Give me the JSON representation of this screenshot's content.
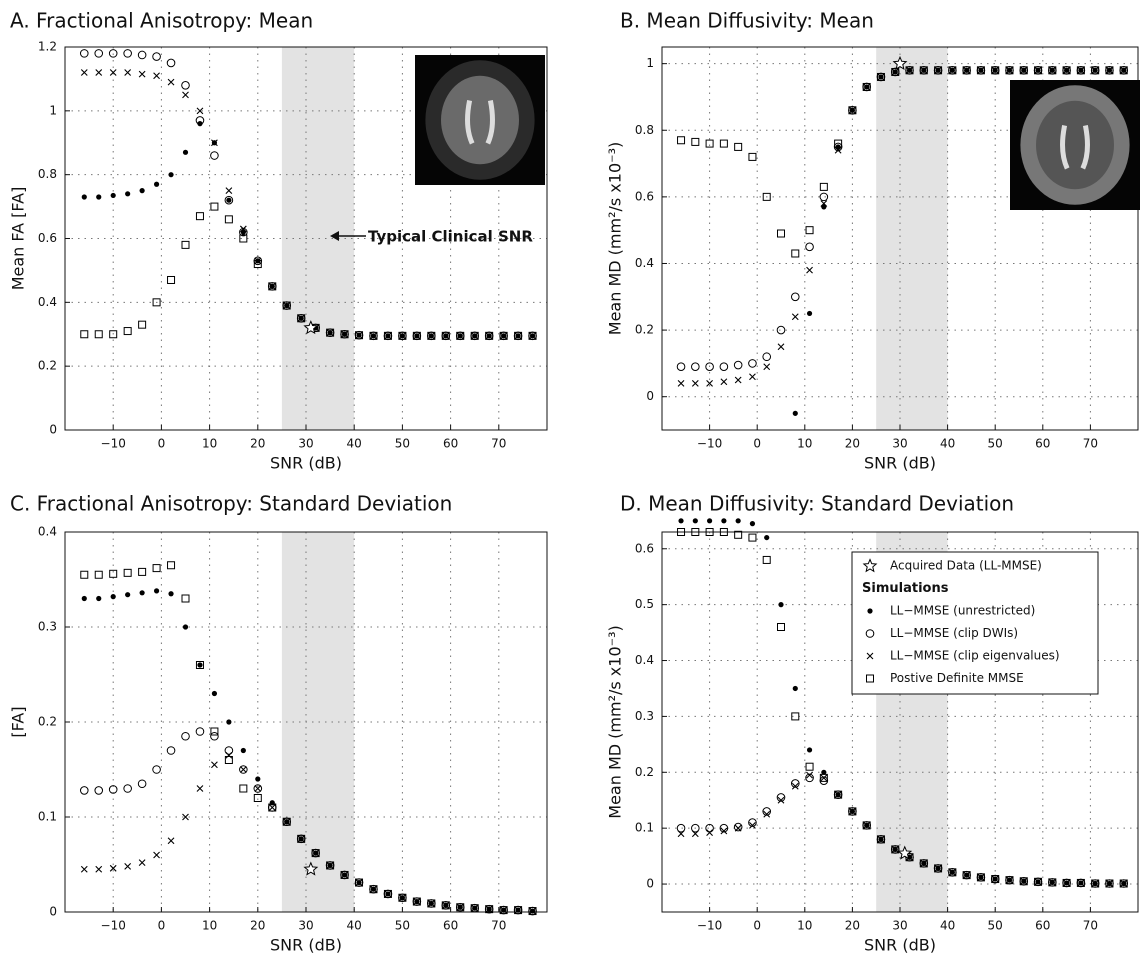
{
  "chart_data": [
    {
      "type": "scatter",
      "title": "A. Fractional Anisotropy: Mean",
      "xlabel": "SNR (dB)",
      "ylabel": "Mean FA [FA]",
      "xlim": [
        -20,
        80
      ],
      "ylim": [
        0,
        1.2
      ],
      "xticks": [
        {
          "value": -10,
          "label": "−10"
        },
        0,
        10,
        20,
        30,
        40,
        50,
        60,
        70
      ],
      "yticks": [
        0,
        0.2,
        0.4,
        0.6,
        0.8,
        1,
        1.2
      ],
      "grid": true,
      "shade": [
        25,
        40
      ],
      "annotation": "Typical Clinical SNR",
      "x": [
        -16,
        -13,
        -10,
        -7,
        -4,
        -1,
        2,
        5,
        8,
        11,
        14,
        17,
        20,
        23,
        26,
        29,
        32,
        35,
        38,
        41,
        44,
        47,
        50,
        53,
        56,
        59,
        62,
        65,
        68,
        71,
        74,
        77
      ],
      "series": [
        {
          "marker": "dot",
          "color": "#000",
          "values": [
            0.73,
            0.73,
            0.735,
            0.74,
            0.75,
            0.77,
            0.8,
            0.87,
            0.96,
            0.9,
            0.72,
            0.62,
            0.53,
            0.45,
            0.39,
            0.35,
            0.32,
            0.305,
            0.3,
            0.297,
            0.295,
            0.295,
            0.295,
            0.295,
            0.295,
            0.295,
            0.295,
            0.295,
            0.295,
            0.295,
            0.295,
            0.295
          ]
        },
        {
          "marker": "circle",
          "color": "#000",
          "values": [
            1.18,
            1.18,
            1.18,
            1.18,
            1.175,
            1.17,
            1.15,
            1.08,
            0.97,
            0.86,
            0.72,
            0.62,
            0.53,
            0.45,
            0.39,
            0.35,
            0.32,
            0.305,
            0.3,
            0.297,
            0.295,
            0.295,
            0.295,
            0.295,
            0.295,
            0.295,
            0.295,
            0.295,
            0.295,
            0.295,
            0.295,
            0.295
          ]
        },
        {
          "marker": "x",
          "color": "#000",
          "values": [
            1.12,
            1.12,
            1.12,
            1.12,
            1.115,
            1.11,
            1.09,
            1.05,
            1.0,
            0.9,
            0.75,
            0.63,
            0.53,
            0.45,
            0.39,
            0.35,
            0.32,
            0.305,
            0.3,
            0.297,
            0.295,
            0.295,
            0.295,
            0.295,
            0.295,
            0.295,
            0.295,
            0.295,
            0.295,
            0.295,
            0.295,
            0.295
          ]
        },
        {
          "marker": "square",
          "color": "#000",
          "values": [
            0.3,
            0.3,
            0.3,
            0.31,
            0.33,
            0.4,
            0.47,
            0.58,
            0.67,
            0.7,
            0.66,
            0.6,
            0.52,
            0.45,
            0.39,
            0.35,
            0.32,
            0.305,
            0.3,
            0.297,
            0.295,
            0.295,
            0.295,
            0.295,
            0.295,
            0.295,
            0.295,
            0.295,
            0.295,
            0.295,
            0.295,
            0.295
          ]
        }
      ],
      "acquired": {
        "marker": "star",
        "color": "#000",
        "x": 31,
        "y": 0.32
      }
    },
    {
      "type": "scatter",
      "title": "B. Mean Diffusivity: Mean",
      "xlabel": "SNR (dB)",
      "ylabel": "Mean MD (mm²/s x10⁻³)",
      "xlim": [
        -20,
        80
      ],
      "ylim": [
        -0.1,
        1.05
      ],
      "xticks": [
        {
          "value": -10,
          "label": "−10"
        },
        0,
        10,
        20,
        30,
        40,
        50,
        60,
        70
      ],
      "yticks": [
        0,
        0.2,
        0.4,
        0.6,
        0.8,
        1
      ],
      "grid": true,
      "shade": [
        25,
        40
      ],
      "x": [
        -16,
        -13,
        -10,
        -7,
        -4,
        -1,
        2,
        5,
        8,
        11,
        14,
        17,
        20,
        23,
        26,
        29,
        32,
        35,
        38,
        41,
        44,
        47,
        50,
        53,
        56,
        59,
        62,
        65,
        68,
        71,
        74,
        77
      ],
      "series": [
        {
          "marker": "dot",
          "color": "#000",
          "values": [
            null,
            null,
            null,
            null,
            null,
            null,
            null,
            null,
            -0.05,
            0.25,
            0.57,
            0.75,
            0.86,
            0.93,
            0.96,
            0.975,
            0.98,
            0.98,
            0.98,
            0.98,
            0.98,
            0.98,
            0.98,
            0.98,
            0.98,
            0.98,
            0.98,
            0.98,
            0.98,
            0.98,
            0.98,
            0.98
          ]
        },
        {
          "marker": "circle",
          "color": "#000",
          "values": [
            0.09,
            0.09,
            0.09,
            0.09,
            0.095,
            0.1,
            0.12,
            0.2,
            0.3,
            0.45,
            0.6,
            0.75,
            0.86,
            0.93,
            0.96,
            0.975,
            0.98,
            0.98,
            0.98,
            0.98,
            0.98,
            0.98,
            0.98,
            0.98,
            0.98,
            0.98,
            0.98,
            0.98,
            0.98,
            0.98,
            0.98,
            0.98
          ]
        },
        {
          "marker": "x",
          "color": "#000",
          "values": [
            0.04,
            0.04,
            0.04,
            0.045,
            0.05,
            0.06,
            0.09,
            0.15,
            0.24,
            0.38,
            0.58,
            0.74,
            0.86,
            0.93,
            0.96,
            0.975,
            0.98,
            0.98,
            0.98,
            0.98,
            0.98,
            0.98,
            0.98,
            0.98,
            0.98,
            0.98,
            0.98,
            0.98,
            0.98,
            0.98,
            0.98,
            0.98
          ]
        },
        {
          "marker": "square",
          "color": "#000",
          "values": [
            0.77,
            0.765,
            0.76,
            0.76,
            0.75,
            0.72,
            0.6,
            0.49,
            0.43,
            0.5,
            0.63,
            0.76,
            0.86,
            0.93,
            0.96,
            0.975,
            0.98,
            0.98,
            0.98,
            0.98,
            0.98,
            0.98,
            0.98,
            0.98,
            0.98,
            0.98,
            0.98,
            0.98,
            0.98,
            0.98,
            0.98,
            0.98
          ]
        }
      ],
      "acquired": {
        "marker": "star",
        "color": "#000",
        "x": 30,
        "y": 1.0
      }
    },
    {
      "type": "scatter",
      "title": "C. Fractional Anisotropy: Standard Deviation",
      "xlabel": "SNR (dB)",
      "ylabel": "[FA]",
      "xlim": [
        -20,
        80
      ],
      "ylim": [
        0,
        0.4
      ],
      "xticks": [
        {
          "value": -10,
          "label": "−10"
        },
        0,
        10,
        20,
        30,
        40,
        50,
        60,
        70
      ],
      "yticks": [
        0,
        0.1,
        0.2,
        0.3,
        0.4
      ],
      "grid": true,
      "shade": [
        25,
        40
      ],
      "x": [
        -16,
        -13,
        -10,
        -7,
        -4,
        -1,
        2,
        5,
        8,
        11,
        14,
        17,
        20,
        23,
        26,
        29,
        32,
        35,
        38,
        41,
        44,
        47,
        50,
        53,
        56,
        59,
        62,
        65,
        68,
        71,
        74,
        77
      ],
      "series": [
        {
          "marker": "dot",
          "color": "#000",
          "values": [
            0.33,
            0.33,
            0.332,
            0.334,
            0.336,
            0.338,
            0.335,
            0.3,
            0.26,
            0.23,
            0.2,
            0.17,
            0.14,
            0.115,
            0.095,
            0.077,
            0.062,
            0.049,
            0.039,
            0.031,
            0.024,
            0.019,
            0.015,
            0.011,
            0.009,
            0.007,
            0.005,
            0.004,
            0.003,
            0.002,
            0.002,
            0.001
          ]
        },
        {
          "marker": "circle",
          "color": "#000",
          "values": [
            0.128,
            0.128,
            0.129,
            0.13,
            0.135,
            0.15,
            0.17,
            0.185,
            0.19,
            0.185,
            0.17,
            0.15,
            0.13,
            0.11,
            0.095,
            0.077,
            0.062,
            0.049,
            0.039,
            0.031,
            0.024,
            0.019,
            0.015,
            0.011,
            0.009,
            0.007,
            0.005,
            0.004,
            0.003,
            0.002,
            0.002,
            0.001
          ]
        },
        {
          "marker": "x",
          "color": "#000",
          "values": [
            0.045,
            0.045,
            0.046,
            0.048,
            0.052,
            0.06,
            0.075,
            0.1,
            0.13,
            0.155,
            0.165,
            0.15,
            0.13,
            0.11,
            0.095,
            0.077,
            0.062,
            0.049,
            0.039,
            0.031,
            0.024,
            0.019,
            0.015,
            0.011,
            0.009,
            0.007,
            0.005,
            0.004,
            0.003,
            0.002,
            0.002,
            0.001
          ]
        },
        {
          "marker": "square",
          "color": "#000",
          "values": [
            0.355,
            0.355,
            0.356,
            0.357,
            0.358,
            0.362,
            0.365,
            0.33,
            0.26,
            0.19,
            0.16,
            0.13,
            0.12,
            0.11,
            0.095,
            0.077,
            0.062,
            0.049,
            0.039,
            0.031,
            0.024,
            0.019,
            0.015,
            0.011,
            0.009,
            0.007,
            0.005,
            0.004,
            0.003,
            0.002,
            0.002,
            0.001
          ]
        }
      ],
      "acquired": {
        "marker": "star",
        "color": "#000",
        "x": 31,
        "y": 0.045
      }
    },
    {
      "type": "scatter",
      "title": "D. Mean Diffusivity: Standard Deviation",
      "xlabel": "SNR (dB)",
      "ylabel": "Mean MD (mm²/s x10⁻³)",
      "xlim": [
        -20,
        80
      ],
      "ylim": [
        -0.05,
        0.63
      ],
      "xticks": [
        {
          "value": -10,
          "label": "−10"
        },
        0,
        10,
        20,
        30,
        40,
        50,
        60,
        70
      ],
      "yticks": [
        0,
        0.1,
        0.2,
        0.3,
        0.4,
        0.5,
        0.6
      ],
      "grid": true,
      "shade": [
        25,
        40
      ],
      "legend_heading": "Simulations",
      "x": [
        -16,
        -13,
        -10,
        -7,
        -4,
        -1,
        2,
        5,
        8,
        11,
        14,
        17,
        20,
        23,
        26,
        29,
        32,
        35,
        38,
        41,
        44,
        47,
        50,
        53,
        56,
        59,
        62,
        65,
        68,
        71,
        74,
        77
      ],
      "series": [
        {
          "name": "LL−MMSE (unrestricted)",
          "marker": "dot",
          "color": "#000",
          "values": [
            0.65,
            0.65,
            0.65,
            0.65,
            0.65,
            0.645,
            0.62,
            0.5,
            0.35,
            0.24,
            0.2,
            0.16,
            0.13,
            0.105,
            0.08,
            0.062,
            0.048,
            0.037,
            0.028,
            0.021,
            0.016,
            0.012,
            0.009,
            0.007,
            0.005,
            0.004,
            0.003,
            0.002,
            0.002,
            0.001,
            0.001,
            0.001
          ]
        },
        {
          "name": "LL−MMSE (clip DWIs)",
          "marker": "circle",
          "color": "#000",
          "values": [
            0.1,
            0.1,
            0.1,
            0.1,
            0.102,
            0.11,
            0.13,
            0.155,
            0.18,
            0.19,
            0.185,
            0.16,
            0.13,
            0.105,
            0.08,
            0.062,
            0.048,
            0.037,
            0.028,
            0.021,
            0.016,
            0.012,
            0.009,
            0.007,
            0.005,
            0.004,
            0.003,
            0.002,
            0.002,
            0.001,
            0.001,
            0.001
          ]
        },
        {
          "name": "LL−MMSE (clip eigenvalues)",
          "marker": "x",
          "color": "#000",
          "values": [
            0.09,
            0.09,
            0.092,
            0.095,
            0.1,
            0.105,
            0.125,
            0.15,
            0.175,
            0.195,
            0.19,
            0.16,
            0.13,
            0.105,
            0.08,
            0.062,
            0.048,
            0.037,
            0.028,
            0.021,
            0.016,
            0.012,
            0.009,
            0.007,
            0.005,
            0.004,
            0.003,
            0.002,
            0.002,
            0.001,
            0.001,
            0.001
          ]
        },
        {
          "name": "Postive Definite MMSE",
          "marker": "square",
          "color": "#000",
          "values": [
            0.63,
            0.63,
            0.63,
            0.63,
            0.625,
            0.62,
            0.58,
            0.46,
            0.3,
            0.21,
            0.19,
            0.16,
            0.13,
            0.105,
            0.08,
            0.062,
            0.048,
            0.037,
            0.028,
            0.021,
            0.016,
            0.012,
            0.009,
            0.007,
            0.005,
            0.004,
            0.003,
            0.002,
            0.002,
            0.001,
            0.001,
            0.001
          ]
        }
      ],
      "acquired": {
        "name": "Acquired Data (LL-MMSE)",
        "marker": "star",
        "color": "#000",
        "x": 31,
        "y": 0.055
      }
    }
  ]
}
